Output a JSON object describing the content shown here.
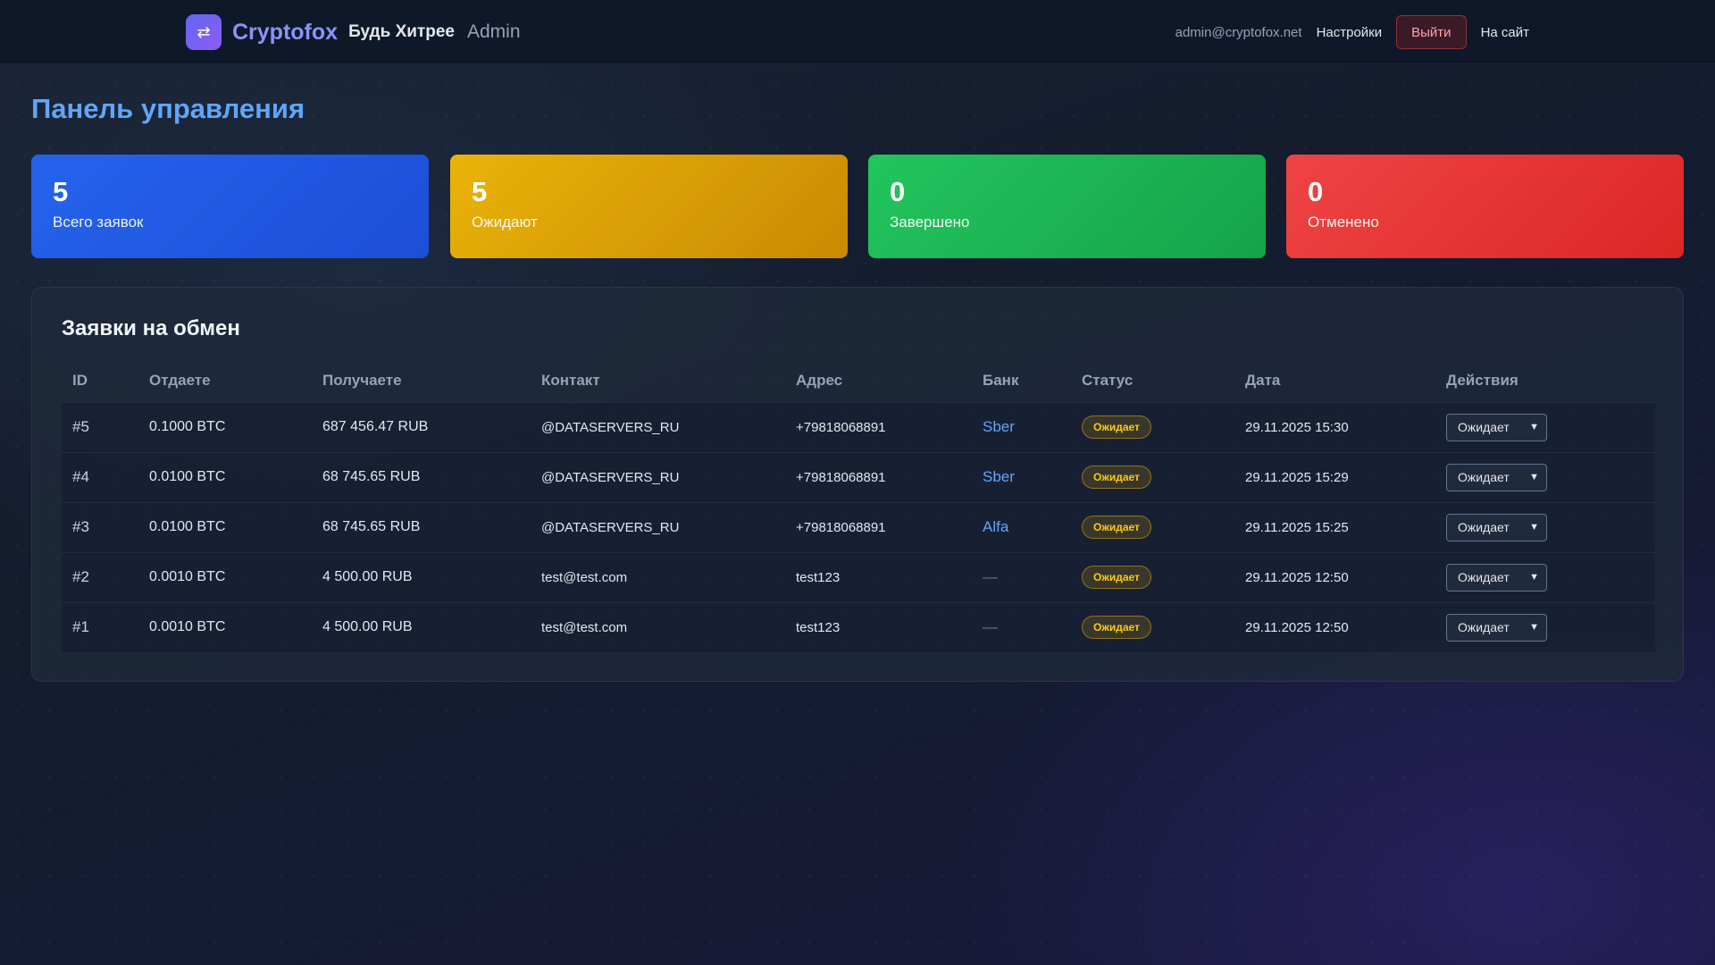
{
  "header": {
    "logo_icon": "swap-icon",
    "brand_name": "Cryptofox",
    "tagline": "Будь Хитрее",
    "admin_label": "Admin",
    "email": "admin@cryptofox.net",
    "settings_label": "Настройки",
    "logout_label": "Выйти",
    "site_label": "На сайт"
  },
  "page": {
    "title": "Панель управления"
  },
  "stats": [
    {
      "value": "5",
      "label": "Всего заявок",
      "color": "#2563eb"
    },
    {
      "value": "5",
      "label": "Ожидают",
      "color": "#eab308"
    },
    {
      "value": "0",
      "label": "Завершено",
      "color": "#22c55e"
    },
    {
      "value": "0",
      "label": "Отменено",
      "color": "#ef4444"
    }
  ],
  "orders": {
    "title": "Заявки на обмен",
    "columns": [
      "ID",
      "Отдаете",
      "Получаете",
      "Контакт",
      "Адрес",
      "Банк",
      "Статус",
      "Дата",
      "Действия"
    ],
    "rows": [
      {
        "id": "#5",
        "give": "0.1000 BTC",
        "get": "687 456.47 RUB",
        "contact": "@DATASERVERS_RU",
        "address": "+79818068891",
        "bank": "Sber",
        "status": "Ожидает",
        "date": "29.11.2025 15:30",
        "action": "Ожидает"
      },
      {
        "id": "#4",
        "give": "0.0100 BTC",
        "get": "68 745.65 RUB",
        "contact": "@DATASERVERS_RU",
        "address": "+79818068891",
        "bank": "Sber",
        "status": "Ожидает",
        "date": "29.11.2025 15:29",
        "action": "Ожидает"
      },
      {
        "id": "#3",
        "give": "0.0100 BTC",
        "get": "68 745.65 RUB",
        "contact": "@DATASERVERS_RU",
        "address": "+79818068891",
        "bank": "Alfa",
        "status": "Ожидает",
        "date": "29.11.2025 15:25",
        "action": "Ожидает"
      },
      {
        "id": "#2",
        "give": "0.0010 BTC",
        "get": "4 500.00 RUB",
        "contact": "test@test.com",
        "address": "test123",
        "bank": "—",
        "status": "Ожидает",
        "date": "29.11.2025 12:50",
        "action": "Ожидает"
      },
      {
        "id": "#1",
        "give": "0.0010 BTC",
        "get": "4 500.00 RUB",
        "contact": "test@test.com",
        "address": "test123",
        "bank": "—",
        "status": "Ожидает",
        "date": "29.11.2025 12:50",
        "action": "Ожидает"
      }
    ]
  }
}
